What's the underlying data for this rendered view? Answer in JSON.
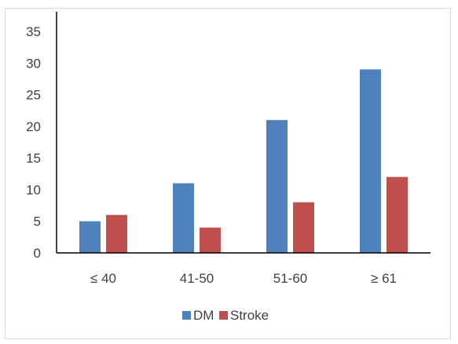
{
  "chart_data": {
    "type": "bar",
    "categories": [
      "≤ 40",
      "41-50",
      "51-60",
      "≥ 61"
    ],
    "series": [
      {
        "name": "DM",
        "values": [
          5,
          11,
          21,
          29
        ],
        "color": "#4f81bd"
      },
      {
        "name": "Stroke",
        "values": [
          6,
          4,
          8,
          12
        ],
        "color": "#c0504d"
      }
    ],
    "ylim": [
      0,
      35
    ],
    "yticks": [
      0,
      5,
      10,
      15,
      20,
      25,
      30,
      35
    ],
    "legend_position": "bottom",
    "grid": false
  }
}
